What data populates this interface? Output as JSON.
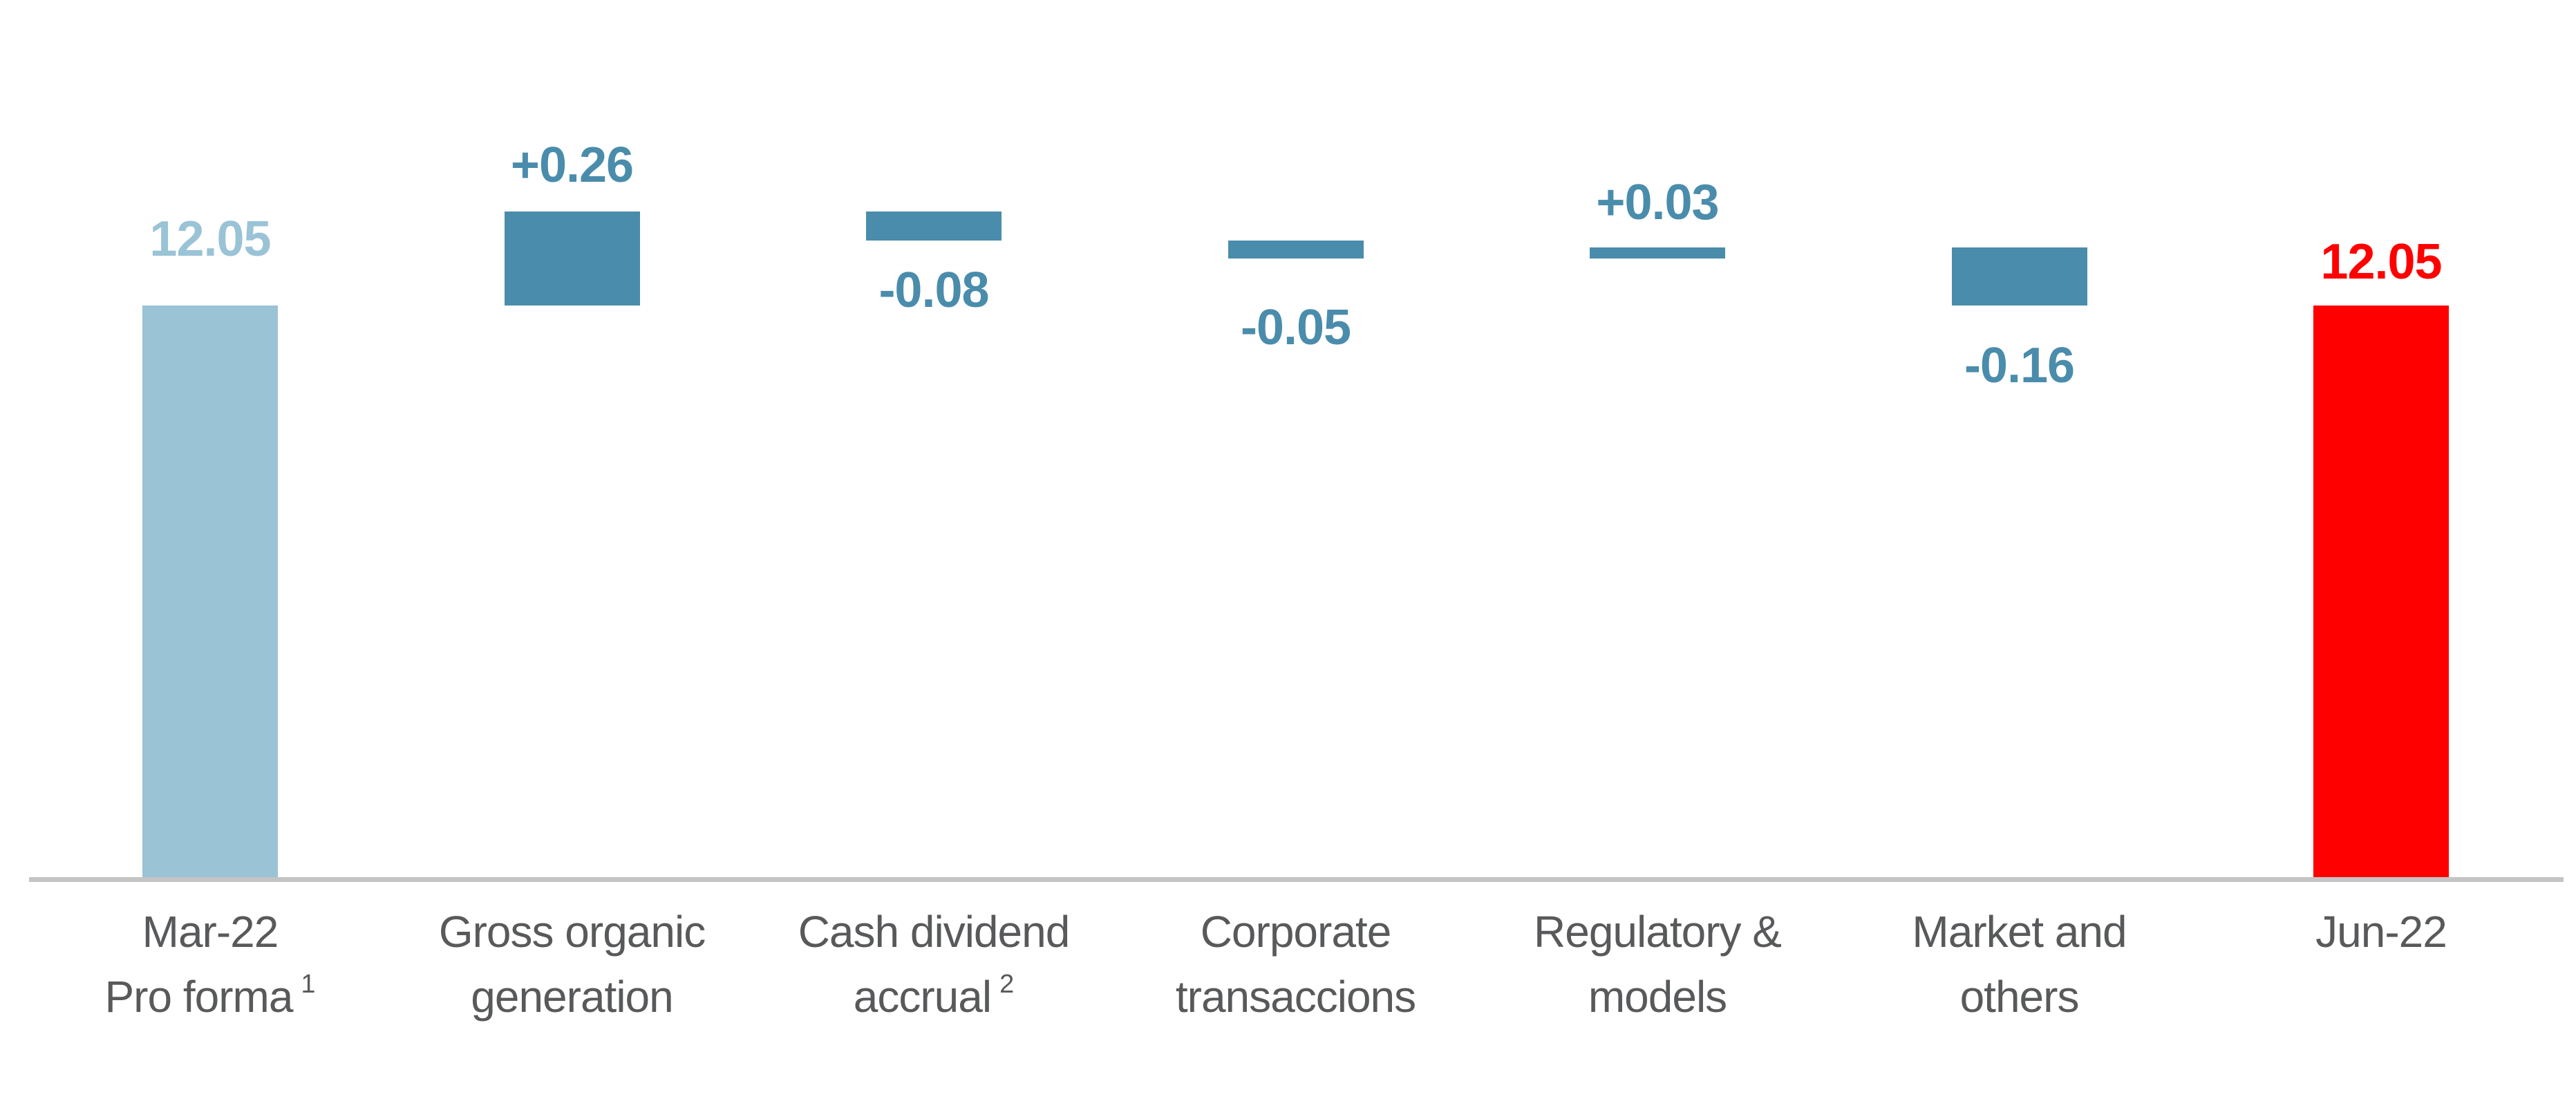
{
  "chart_data": {
    "type": "bar",
    "subtype": "waterfall",
    "title": "",
    "xlabel": "",
    "ylabel": "",
    "legend": null,
    "grid": false,
    "y_axis_shown": false,
    "x_axis_line_shown": true,
    "value_range_depicted": [
      10.46,
      12.31
    ],
    "categories": [
      "Mar-22 Pro forma 1",
      "Gross organic generation",
      "Cash dividend accrual 2",
      "Corporate transaccions",
      "Regulatory & models",
      "Market and others",
      "Jun-22"
    ],
    "bars": [
      {
        "slug": "mar-22-pro-forma",
        "label_lines": [
          {
            "text": "Mar-22"
          },
          {
            "text": "Pro forma",
            "sup": "1"
          }
        ],
        "kind": "initial",
        "value": 12.05,
        "display": "12.05",
        "start": null,
        "end": 12.05,
        "label_position": "above"
      },
      {
        "slug": "gross-organic-generation",
        "label_lines": [
          {
            "text": "Gross organic"
          },
          {
            "text": "generation"
          }
        ],
        "kind": "delta",
        "value": 0.26,
        "display": "+0.26",
        "start": 12.05,
        "end": 12.31,
        "label_position": "above"
      },
      {
        "slug": "cash-dividend-accrual",
        "label_lines": [
          {
            "text": "Cash dividend"
          },
          {
            "text": "accrual",
            "sup": "2"
          }
        ],
        "kind": "delta",
        "value": -0.08,
        "display": "-0.08",
        "start": 12.31,
        "end": 12.23,
        "label_position": "below"
      },
      {
        "slug": "corporate-transaccions",
        "label_lines": [
          {
            "text": "Corporate"
          },
          {
            "text": "transaccions"
          }
        ],
        "kind": "delta",
        "value": -0.05,
        "display": "-0.05",
        "start": 12.23,
        "end": 12.18,
        "label_position": "below"
      },
      {
        "slug": "regulatory-models",
        "label_lines": [
          {
            "text": "Regulatory &"
          },
          {
            "text": "models"
          }
        ],
        "kind": "delta",
        "value": 0.03,
        "display": "+0.03",
        "start": 12.18,
        "end": 12.21,
        "label_position": "above"
      },
      {
        "slug": "market-and-others",
        "label_lines": [
          {
            "text": "Market and"
          },
          {
            "text": "others"
          }
        ],
        "kind": "delta",
        "value": -0.16,
        "display": "-0.16",
        "start": 12.21,
        "end": 12.05,
        "label_position": "below"
      },
      {
        "slug": "jun-22",
        "label_lines": [
          {
            "text": "Jun-22"
          }
        ],
        "kind": "total",
        "value": 12.05,
        "display": "12.05",
        "start": null,
        "end": 12.05,
        "label_position": "above"
      }
    ],
    "colors": {
      "initial_bar": "#9ac3d6",
      "delta_bar": "#4a8cab",
      "total_bar": "#fe0000",
      "initial_value_label": "#9ac3d6",
      "delta_value_label": "#4a8cab",
      "total_value_label": "#fe0000",
      "category_label": "#58595b",
      "axis_line": "#c4c4c4"
    }
  }
}
